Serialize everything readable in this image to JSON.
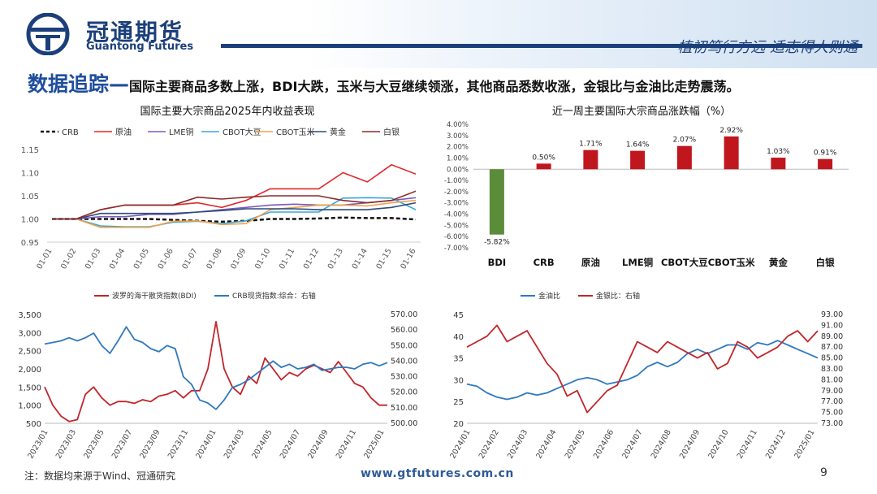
{
  "header": {
    "logo_cn": "冠通期货",
    "logo_en": "Guantong Futures",
    "slogan": "植初笃行方远  适志得人则通",
    "title_lead": "数据追踪",
    "title_dash": "—",
    "title_text": "国际主要商品多数上涨，BDI大跌，玉米与大豆继续领涨，其他商品悉数收涨，金银比与金油比走势震荡。"
  },
  "footer": {
    "note": "注：数据均来源于Wind、冠通研究",
    "url": "www.gtfutures.com.cn",
    "page": "9"
  },
  "colors": {
    "brand": "#1b3f7a",
    "CRB": "#111111",
    "crude": "#e0282b",
    "lme_cu": "#7b5bb8",
    "cbot_soy": "#38a7d8",
    "cbot_corn": "#f0a04b",
    "gold": "#2e4a7d",
    "silver": "#8a2b2b",
    "bdi": "#c0262b",
    "crb_spot": "#2f79bf",
    "pos_bar": "#c0161e",
    "neg_bar": "#5b8c3a"
  },
  "chart_data": [
    {
      "id": "ytd",
      "type": "line",
      "title": "国际主要大宗商品2025年内收益表现",
      "x": [
        "01-01",
        "01-02",
        "01-03",
        "01-04",
        "01-05",
        "01-06",
        "01-07",
        "01-08",
        "01-09",
        "01-10",
        "01-11",
        "01-12",
        "01-13",
        "01-14",
        "01-15",
        "01-16"
      ],
      "ylim": [
        0.95,
        1.15
      ],
      "yticks": [
        "0.95",
        "1.00",
        "1.05",
        "1.10",
        "1.15"
      ],
      "series": [
        {
          "name": "CRB",
          "color_key": "CRB",
          "dash": true,
          "values": [
            1.0,
            1.0,
            1.0,
            1.0,
            1.0,
            0.998,
            0.996,
            0.994,
            0.996,
            1.0,
            1.0,
            1.001,
            1.003,
            1.002,
            1.002,
            0.999
          ]
        },
        {
          "name": "原油",
          "color_key": "crude",
          "values": [
            1.0,
            1.0,
            1.02,
            1.03,
            1.03,
            1.03,
            1.035,
            1.025,
            1.04,
            1.065,
            1.065,
            1.065,
            1.1,
            1.08,
            1.117,
            1.097
          ]
        },
        {
          "name": "LME铜",
          "color_key": "lme_cu",
          "values": [
            1.0,
            1.0,
            1.005,
            1.005,
            1.01,
            1.01,
            1.015,
            1.02,
            1.025,
            1.03,
            1.032,
            1.03,
            1.03,
            1.035,
            1.04,
            1.046
          ]
        },
        {
          "name": "CBOT大豆",
          "color_key": "cbot_soy",
          "values": [
            1.0,
            1.0,
            0.985,
            0.983,
            0.983,
            0.993,
            0.995,
            0.99,
            0.996,
            1.015,
            1.015,
            1.015,
            1.045,
            1.046,
            1.045,
            1.02
          ]
        },
        {
          "name": "CBOT玉米",
          "color_key": "cbot_corn",
          "values": [
            1.0,
            1.0,
            0.982,
            0.982,
            0.982,
            0.995,
            0.996,
            0.988,
            0.99,
            1.02,
            1.025,
            1.03,
            1.03,
            1.028,
            1.035,
            1.04
          ]
        },
        {
          "name": "黄金",
          "color_key": "gold",
          "values": [
            1.0,
            1.0,
            1.012,
            1.012,
            1.012,
            1.012,
            1.015,
            1.018,
            1.022,
            1.022,
            1.022,
            1.02,
            1.02,
            1.02,
            1.025,
            1.035
          ]
        },
        {
          "name": "白银",
          "color_key": "silver",
          "values": [
            1.0,
            1.0,
            1.02,
            1.03,
            1.03,
            1.03,
            1.047,
            1.043,
            1.047,
            1.05,
            1.05,
            1.05,
            1.04,
            1.035,
            1.04,
            1.06
          ]
        }
      ]
    },
    {
      "id": "weekly",
      "type": "bar",
      "title": "近一周主要国际大宗商品涨跌幅（%）",
      "categories": [
        "BDI",
        "CRB",
        "原油",
        "LME铜",
        "CBOT大豆",
        "CBOT玉米",
        "黄金",
        "白银"
      ],
      "values": [
        -5.82,
        0.5,
        1.71,
        1.64,
        2.07,
        2.92,
        1.03,
        0.91
      ],
      "labels": [
        "-5.82%",
        "0.50%",
        "1.71%",
        "1.64%",
        "2.07%",
        "2.92%",
        "1.03%",
        "0.91%"
      ],
      "ylim": [
        -7.0,
        4.0
      ],
      "yticks": [
        "-7.00%",
        "-6.00%",
        "-5.00%",
        "-4.00%",
        "-3.00%",
        "-2.00%",
        "-1.00%",
        "0.00%",
        "1.00%",
        "2.00%",
        "3.00%",
        "4.00%"
      ]
    },
    {
      "id": "bdi_crb",
      "type": "line",
      "x_ticks": [
        "2023/01",
        "2023/03",
        "2023/05",
        "2023/07",
        "2023/09",
        "2023/11",
        "2024/01",
        "2024/03",
        "2024/05",
        "2024/07",
        "2024/09",
        "2024/11",
        "2025/01"
      ],
      "ylim_left": [
        500,
        3500
      ],
      "yticks_left": [
        "500",
        "1,000",
        "1,500",
        "2,000",
        "2,500",
        "3,000",
        "3,500"
      ],
      "ylim_right": [
        500,
        570
      ],
      "yticks_right": [
        "500.00",
        "510.00",
        "520.00",
        "530.00",
        "540.00",
        "550.00",
        "560.00",
        "570.00"
      ],
      "series": [
        {
          "name": "波罗的海干散货指数(BDI)",
          "color_key": "bdi",
          "axis": "left",
          "values": [
            1500,
            1000,
            700,
            550,
            600,
            1300,
            1500,
            1200,
            1000,
            1100,
            1100,
            1050,
            1150,
            1100,
            1250,
            1300,
            1400,
            1200,
            1400,
            1400,
            2000,
            3300,
            2000,
            1500,
            1300,
            1800,
            1600,
            2300,
            2000,
            1700,
            1900,
            1800,
            2000,
            2100,
            2000,
            1900,
            2200,
            1900,
            1600,
            1500,
            1200,
            1000,
            1000
          ]
        },
        {
          "name": "CRB现货指数:综合：右轴",
          "color_key": "crb_spot",
          "axis": "right",
          "values": [
            551,
            552,
            553,
            555,
            553,
            555,
            558,
            550,
            545,
            553,
            562,
            554,
            552,
            548,
            546,
            550,
            548,
            530,
            525,
            515,
            513,
            509,
            515,
            523,
            525,
            528,
            532,
            536,
            540,
            536,
            538,
            535,
            536,
            538,
            534,
            535,
            536,
            536,
            535,
            538,
            539,
            537,
            539
          ]
        }
      ]
    },
    {
      "id": "gold_oil",
      "type": "line",
      "x_ticks": [
        "2024/01",
        "2024/02",
        "2024/03",
        "2024/04",
        "2024/05",
        "2024/06",
        "2024/07",
        "2024/08",
        "2024/09",
        "2024/10",
        "2024/11",
        "2024/12",
        "2025/01"
      ],
      "ylim_left": [
        20,
        45
      ],
      "yticks_left": [
        "20",
        "25",
        "30",
        "35",
        "40",
        "45"
      ],
      "ylim_right": [
        73,
        93
      ],
      "yticks_right": [
        "73.00",
        "75.00",
        "77.00",
        "79.00",
        "81.00",
        "83.00",
        "85.00",
        "87.00",
        "89.00",
        "91.00",
        "93.00"
      ],
      "series": [
        {
          "name": "金油比",
          "color_key": "crb_spot",
          "axis": "left",
          "values": [
            29,
            28.5,
            27,
            26,
            25.5,
            26,
            27,
            26.5,
            27,
            28,
            29,
            30,
            30.5,
            30,
            29,
            29.5,
            30,
            31,
            33,
            34,
            33,
            34,
            36,
            37,
            36,
            37,
            38,
            38,
            37,
            38.5,
            38,
            39,
            38,
            37,
            36,
            35
          ]
        },
        {
          "name": "金银比：右轴",
          "color_key": "bdi",
          "axis": "right",
          "values": [
            87,
            88,
            89,
            91,
            88,
            89,
            90,
            87,
            84,
            82,
            78,
            79,
            75,
            77,
            79,
            80,
            84,
            88,
            87,
            86,
            88,
            87,
            86,
            85,
            86,
            83,
            84,
            88,
            87,
            85,
            86,
            87,
            89,
            90,
            88,
            90
          ]
        }
      ]
    }
  ]
}
